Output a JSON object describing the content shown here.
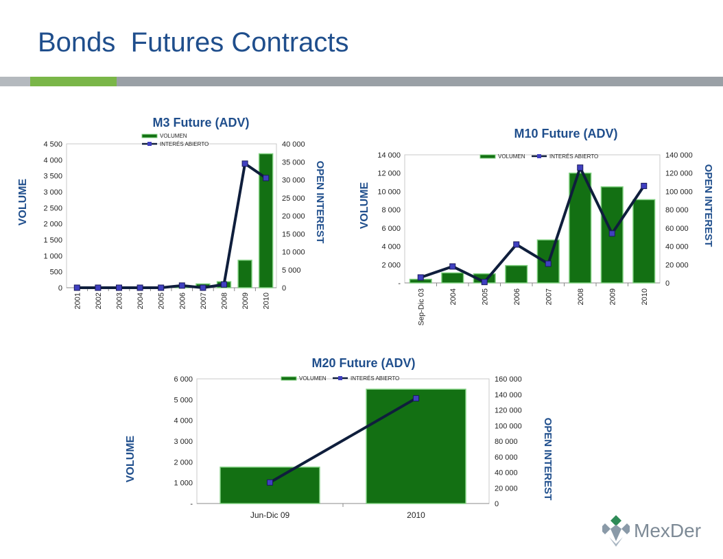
{
  "page": {
    "title": "Bonds  Futures Contracts"
  },
  "logo": {
    "text": "MexDer"
  },
  "colors": {
    "bar": "#137013",
    "bar_edge": "#7fcf7f",
    "line": "#0f1e3c",
    "marker": "#4040c0",
    "title": "#1f4e8c"
  },
  "chart_data": [
    {
      "type": "bar",
      "title": "M3 Future (ADV)",
      "ylabel": "VOLUME",
      "y2label": "OPEN INTEREST",
      "categories": [
        "2001",
        "2002",
        "2003",
        "2004",
        "2005",
        "2006",
        "2007",
        "2008",
        "2009",
        "2010"
      ],
      "ylim": [
        0,
        4500
      ],
      "yticks": [
        "0",
        "500",
        "1 000",
        "1 500",
        "2 000",
        "2 500",
        "3 000",
        "3 500",
        "4 000",
        "4 500"
      ],
      "y2lim": [
        0,
        40000
      ],
      "y2ticks": [
        "0",
        "5 000",
        "10 000",
        "15 000",
        "20 000",
        "25 000",
        "30 000",
        "35 000",
        "40 000"
      ],
      "legend": {
        "placement": "top-left",
        "entries": [
          "VOLUMEN",
          "INTERÉS ABIERTO"
        ]
      },
      "series": [
        {
          "name": "VOLUMEN",
          "kind": "bar",
          "axis": "left",
          "values": [
            0,
            0,
            0,
            0,
            0,
            50,
            120,
            190,
            860,
            4190
          ]
        },
        {
          "name": "INTERÉS ABIERTO",
          "kind": "line",
          "axis": "right",
          "values": [
            0,
            0,
            0,
            0,
            0,
            600,
            0,
            900,
            34500,
            30500
          ]
        }
      ]
    },
    {
      "type": "bar",
      "title": "M10 Future (ADV)",
      "ylabel": "VOLUME",
      "y2label": "OPEN INTEREST",
      "categories": [
        "Sep-Dic 03",
        "2004",
        "2005",
        "2006",
        "2007",
        "2008",
        "2009",
        "2010"
      ],
      "ylim": [
        0,
        14000
      ],
      "yticks": [
        "-",
        "2 000",
        "4 000",
        "6 000",
        "8 000",
        "10 000",
        "12 000",
        "14 000"
      ],
      "y2lim": [
        0,
        140000
      ],
      "y2ticks": [
        "0",
        "20 000",
        "40 000",
        "60 000",
        "80 000",
        "100 000",
        "120 000",
        "140 000"
      ],
      "legend": {
        "placement": "top",
        "entries": [
          "VOLUMEN",
          "INTERÉS ABIERTO"
        ]
      },
      "series": [
        {
          "name": "VOLUMEN",
          "kind": "bar",
          "axis": "left",
          "values": [
            400,
            1100,
            1000,
            1900,
            4700,
            12000,
            10500,
            9100
          ]
        },
        {
          "name": "INTERÉS ABIERTO",
          "kind": "line",
          "axis": "right",
          "values": [
            6000,
            18000,
            1000,
            42000,
            21000,
            126000,
            54000,
            106000
          ]
        }
      ]
    },
    {
      "type": "bar",
      "title": "M20 Future (ADV)",
      "ylabel": "VOLUME",
      "y2label": "OPEN INTEREST",
      "categories": [
        "Jun-Dic 09",
        "2010"
      ],
      "ylim": [
        0,
        6000
      ],
      "yticks": [
        "-",
        "1 000",
        "2 000",
        "3 000",
        "4 000",
        "5 000",
        "6 000"
      ],
      "y2lim": [
        0,
        160000
      ],
      "y2ticks": [
        "0",
        "20 000",
        "40 000",
        "60 000",
        "80 000",
        "100 000",
        "120 000",
        "140 000",
        "160 000"
      ],
      "legend": {
        "placement": "top",
        "entries": [
          "VOLUMEN",
          "INTERÉS ABIERTO"
        ]
      },
      "series": [
        {
          "name": "VOLUMEN",
          "kind": "bar",
          "axis": "left",
          "values": [
            1750,
            5500
          ]
        },
        {
          "name": "INTERÉS ABIERTO",
          "kind": "line",
          "axis": "right",
          "values": [
            27000,
            135000
          ]
        }
      ]
    }
  ]
}
